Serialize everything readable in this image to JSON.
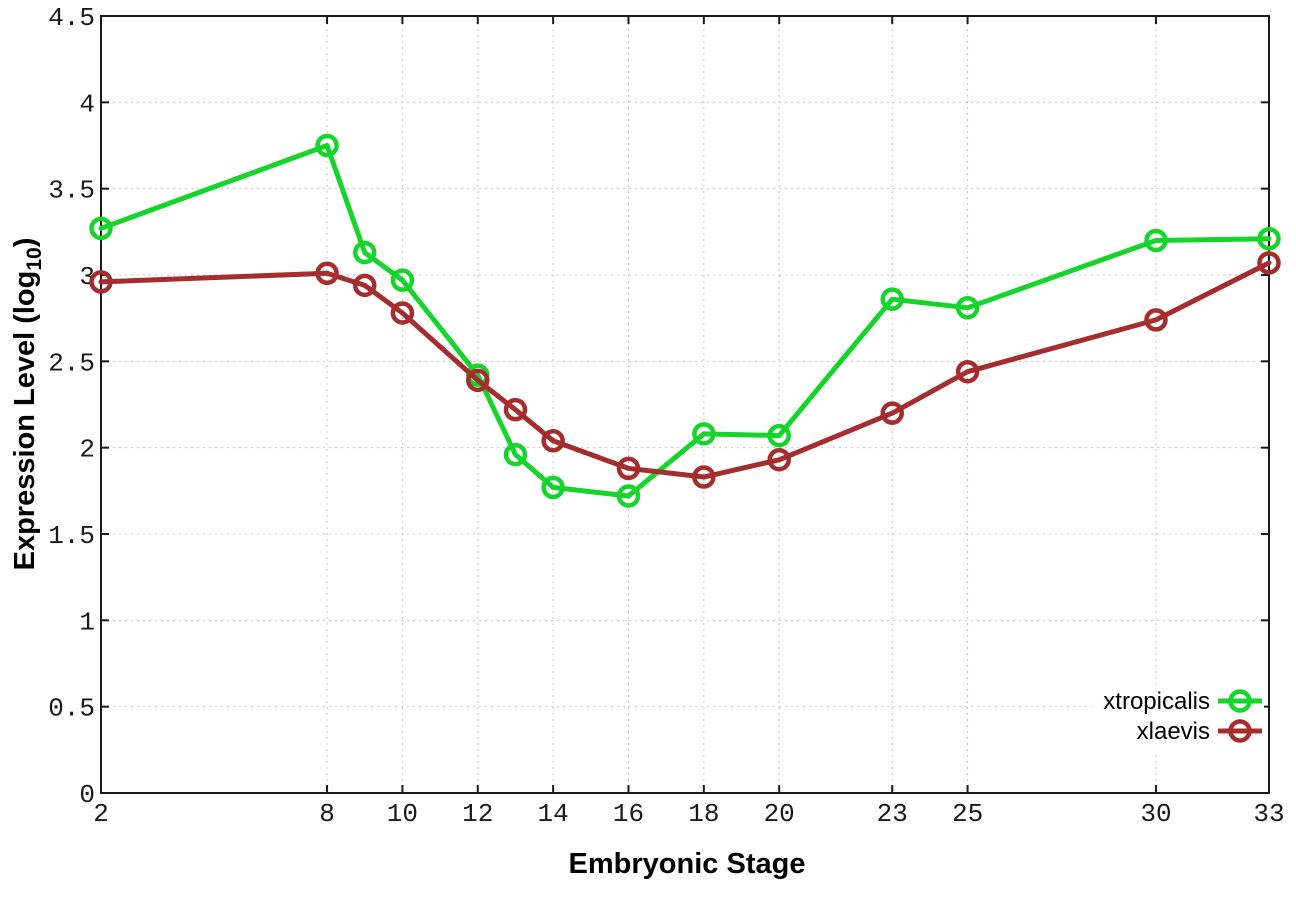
{
  "chart_data": {
    "type": "line",
    "title": "",
    "xlabel": "Embryonic Stage",
    "ylabel": "Expression Level (log10)",
    "ylabel_parts": {
      "main": "Expression Level (log",
      "sub": "10",
      "end": ")"
    },
    "x": [
      2,
      8,
      9,
      10,
      12,
      13,
      14,
      16,
      18,
      20,
      23,
      25,
      30,
      33
    ],
    "series": [
      {
        "name": "xtropicalis",
        "color": "#15d42a",
        "values": [
          3.27,
          3.75,
          3.13,
          2.97,
          2.42,
          1.96,
          1.77,
          1.72,
          2.08,
          2.07,
          2.86,
          2.81,
          3.2,
          3.21
        ]
      },
      {
        "name": "xlaevis",
        "color": "#a52d2d",
        "values": [
          2.96,
          3.01,
          2.94,
          2.78,
          2.39,
          2.22,
          2.04,
          1.88,
          1.83,
          1.93,
          2.2,
          2.44,
          2.74,
          3.07
        ]
      }
    ],
    "xlim": [
      2,
      33
    ],
    "ylim": [
      0,
      4.5
    ],
    "xticks": [
      2,
      8,
      10,
      12,
      14,
      16,
      18,
      20,
      23,
      25,
      30,
      33
    ],
    "xtick_labels": [
      "2",
      "8",
      "10",
      "12",
      "14",
      "16",
      "18",
      "20",
      "23",
      "25",
      "30",
      "33"
    ],
    "yticks": [
      0,
      0.5,
      1,
      1.5,
      2,
      2.5,
      3,
      3.5,
      4,
      4.5
    ],
    "ytick_labels": [
      "0",
      "0.5",
      "1",
      "1.5",
      "2",
      "2.5",
      "3",
      "3.5",
      "4",
      "4.5"
    ],
    "grid": true,
    "grid_style": "dotted",
    "legend_position": "bottom-right-inside",
    "marker": "open-circle",
    "colors": {
      "xtropicalis": "#15d42a",
      "xlaevis": "#a52d2d",
      "border": "#1a1a1a",
      "gridline": "#c4c4c4",
      "background": "#ffffff",
      "text": "#000000"
    }
  }
}
